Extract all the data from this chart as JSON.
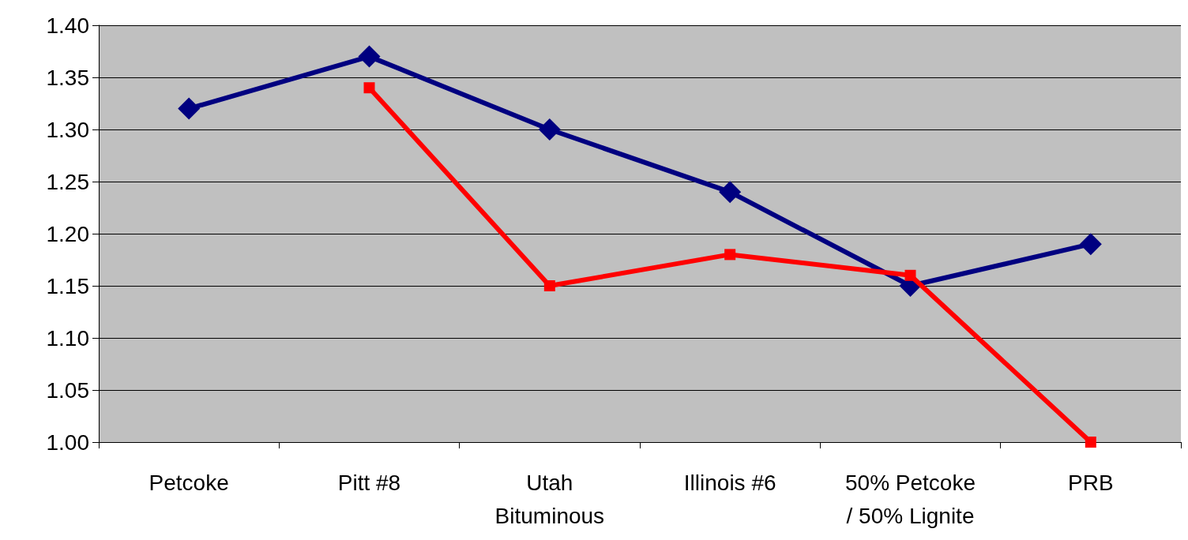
{
  "chart_data": {
    "type": "line",
    "categories": [
      "Petcoke",
      "Pitt #8",
      "Utah\nBituminous",
      "Illinois #6",
      "50% Petcoke\n/ 50% Lignite",
      "PRB"
    ],
    "series": [
      {
        "color": "#000080",
        "marker": "diamond",
        "values": [
          1.32,
          1.37,
          1.3,
          1.24,
          1.15,
          1.19
        ]
      },
      {
        "color": "#ff0000",
        "marker": "square",
        "values": [
          null,
          1.34,
          1.15,
          1.18,
          1.16,
          1.0
        ]
      }
    ],
    "ylim": [
      1.0,
      1.4
    ],
    "yticks": [
      {
        "value": 1.0,
        "label": "1.00"
      },
      1.05,
      {
        "value": 1.1,
        "label": "1.10"
      },
      1.15,
      {
        "value": 1.2,
        "label": "1.20"
      },
      1.25,
      {
        "value": 1.3,
        "label": "1.30"
      },
      1.35,
      {
        "value": 1.4,
        "label": "1.40"
      }
    ],
    "grid": "y",
    "line_style": "solid"
  }
}
